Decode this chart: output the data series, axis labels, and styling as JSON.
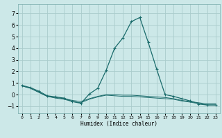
{
  "title": "",
  "xlabel": "Humidex (Indice chaleur)",
  "xlim": [
    -0.5,
    23.5
  ],
  "ylim": [
    -1.6,
    7.8
  ],
  "yticks": [
    -1,
    0,
    1,
    2,
    3,
    4,
    5,
    6,
    7
  ],
  "xticks": [
    0,
    1,
    2,
    3,
    4,
    5,
    6,
    7,
    8,
    9,
    10,
    11,
    12,
    13,
    14,
    15,
    16,
    17,
    18,
    19,
    20,
    21,
    22,
    23
  ],
  "bg_color": "#cce8e8",
  "grid_color": "#aacccc",
  "line_color": "#1a6b6b",
  "line1_x": [
    0,
    1,
    2,
    3,
    4,
    5,
    6,
    7,
    8,
    9,
    10,
    11,
    12,
    13,
    14,
    15,
    16,
    17,
    18,
    19,
    20,
    21,
    22,
    23
  ],
  "line1_y": [
    0.8,
    0.6,
    0.3,
    -0.1,
    -0.2,
    -0.3,
    -0.6,
    -0.75,
    0.05,
    0.55,
    2.1,
    4.0,
    4.9,
    6.3,
    6.65,
    4.5,
    2.2,
    0.0,
    -0.15,
    -0.35,
    -0.55,
    -0.8,
    -0.9,
    -0.9
  ],
  "line2_x": [
    0,
    1,
    2,
    3,
    4,
    5,
    6,
    7,
    8,
    9,
    10,
    11,
    12,
    13,
    14,
    15,
    16,
    17,
    18,
    19,
    20,
    21,
    22,
    23
  ],
  "line2_y": [
    0.75,
    0.55,
    0.2,
    -0.15,
    -0.25,
    -0.35,
    -0.5,
    -0.6,
    -0.35,
    -0.15,
    0.0,
    0.0,
    -0.05,
    -0.05,
    -0.1,
    -0.15,
    -0.2,
    -0.25,
    -0.35,
    -0.5,
    -0.6,
    -0.7,
    -0.8,
    -0.8
  ],
  "line3_x": [
    0,
    1,
    2,
    3,
    4,
    5,
    6,
    7,
    8,
    9,
    10,
    11,
    12,
    13,
    14,
    15,
    16,
    17,
    18,
    19,
    20,
    21,
    22,
    23
  ],
  "line3_y": [
    0.75,
    0.55,
    0.2,
    -0.15,
    -0.3,
    -0.4,
    -0.6,
    -0.7,
    -0.4,
    -0.2,
    -0.05,
    -0.1,
    -0.15,
    -0.15,
    -0.2,
    -0.25,
    -0.3,
    -0.35,
    -0.4,
    -0.55,
    -0.65,
    -0.78,
    -0.88,
    -0.88
  ]
}
